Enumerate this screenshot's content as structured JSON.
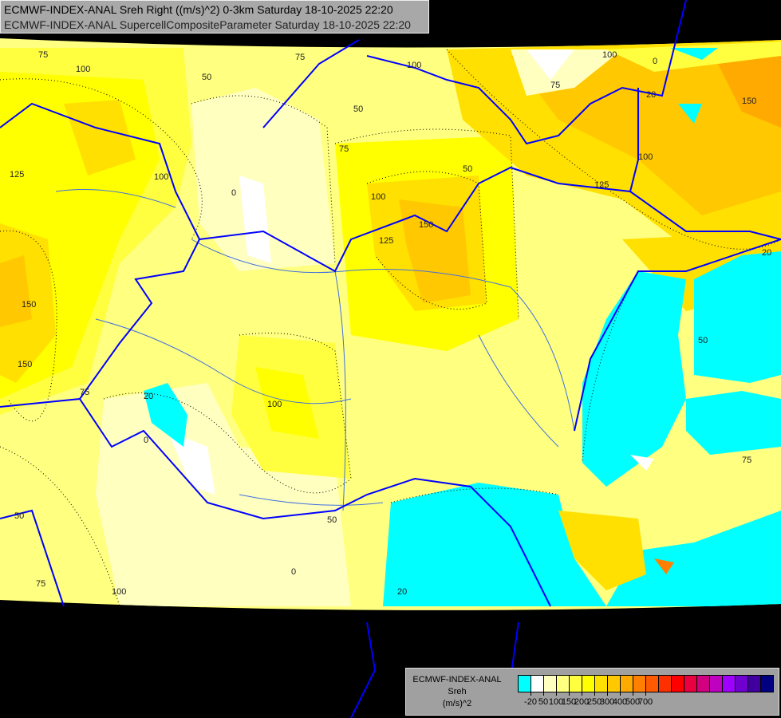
{
  "header": {
    "line1": "ECMWF-INDEX-ANAL Sreh Right ((m/s)^2) 0-3km Saturday 18-10-2025 22:20",
    "line2": "ECMWF-INDEX-ANAL SupercellCompositeParameter Saturday 18-10-2025 22:20"
  },
  "legend": {
    "title": "ECMWF-INDEX-ANAL",
    "variable": "Sreh",
    "unit": "(m/s)^2",
    "colors": [
      "#00ffff",
      "#ffffff",
      "#ffffc0",
      "#ffff80",
      "#ffff40",
      "#ffff00",
      "#ffe000",
      "#ffc800",
      "#ffaa00",
      "#ff8000",
      "#ff5a00",
      "#ff3000",
      "#ff0000",
      "#e80040",
      "#d00080",
      "#c000c0",
      "#a000ff",
      "#7000d0",
      "#4000a0",
      "#000080"
    ],
    "ticks": [
      "-20",
      "50",
      "100",
      "150",
      "200",
      "250",
      "300",
      "400",
      "500",
      "700"
    ]
  },
  "contour_labels": [
    "75",
    "100",
    "50",
    "75",
    "125",
    "100",
    "150",
    "150",
    "0",
    "50",
    "75",
    "100",
    "125",
    "150",
    "75",
    "100",
    "125",
    "50",
    "100",
    "150",
    "20",
    "0",
    "75",
    "100",
    "50",
    "100",
    "20",
    "0",
    "50",
    "100",
    "75",
    "50",
    "20",
    "0",
    "75",
    "20"
  ]
}
